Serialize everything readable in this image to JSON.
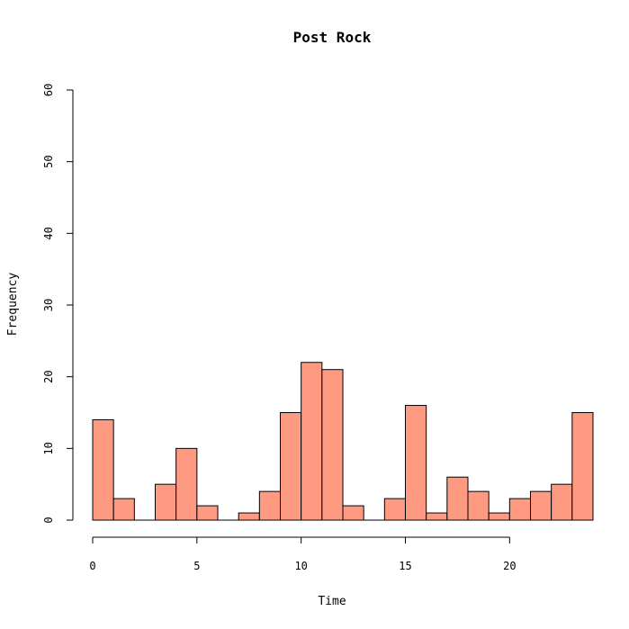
{
  "chart_data": {
    "type": "bar",
    "title": "Post Rock",
    "xlabel": "Time",
    "ylabel": "Frequency",
    "xlim": [
      0,
      24
    ],
    "ylim": [
      0,
      60
    ],
    "x_ticks": [
      0,
      5,
      10,
      15,
      20
    ],
    "y_ticks": [
      0,
      10,
      20,
      30,
      40,
      50,
      60
    ],
    "bar_color": "#FF9A82",
    "bin_width": 1,
    "bins": [
      {
        "start": 0,
        "end": 1,
        "value": 14
      },
      {
        "start": 1,
        "end": 2,
        "value": 3
      },
      {
        "start": 2,
        "end": 3,
        "value": 0
      },
      {
        "start": 3,
        "end": 4,
        "value": 5
      },
      {
        "start": 4,
        "end": 5,
        "value": 10
      },
      {
        "start": 5,
        "end": 6,
        "value": 2
      },
      {
        "start": 6,
        "end": 7,
        "value": 0
      },
      {
        "start": 7,
        "end": 8,
        "value": 1
      },
      {
        "start": 8,
        "end": 9,
        "value": 4
      },
      {
        "start": 9,
        "end": 10,
        "value": 15
      },
      {
        "start": 10,
        "end": 11,
        "value": 22
      },
      {
        "start": 11,
        "end": 12,
        "value": 21
      },
      {
        "start": 12,
        "end": 13,
        "value": 2
      },
      {
        "start": 13,
        "end": 14,
        "value": 0
      },
      {
        "start": 14,
        "end": 15,
        "value": 3
      },
      {
        "start": 15,
        "end": 16,
        "value": 16
      },
      {
        "start": 16,
        "end": 17,
        "value": 1
      },
      {
        "start": 17,
        "end": 18,
        "value": 6
      },
      {
        "start": 18,
        "end": 19,
        "value": 4
      },
      {
        "start": 19,
        "end": 20,
        "value": 1
      },
      {
        "start": 20,
        "end": 21,
        "value": 3
      },
      {
        "start": 21,
        "end": 22,
        "value": 4
      },
      {
        "start": 22,
        "end": 23,
        "value": 5
      },
      {
        "start": 23,
        "end": 24,
        "value": 15
      }
    ]
  }
}
